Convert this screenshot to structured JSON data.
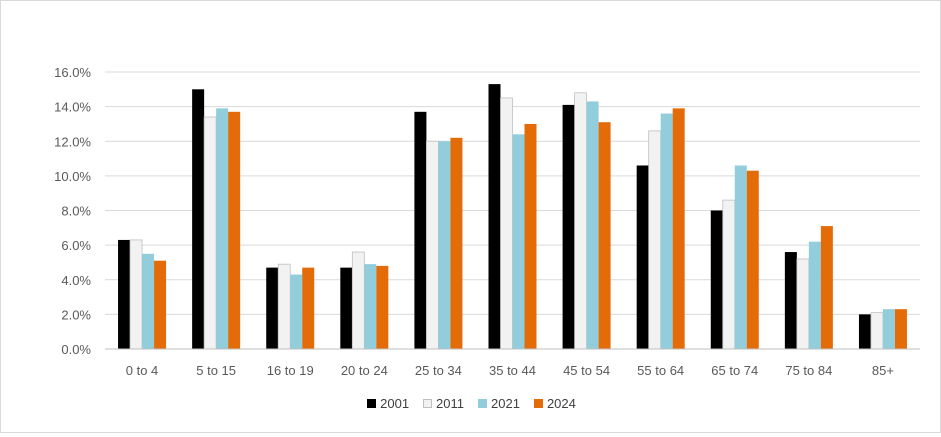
{
  "chart_data": {
    "type": "bar",
    "categories": [
      "0 to 4",
      "5 to 15",
      "16 to 19",
      "20 to 24",
      "25 to 34",
      "35 to 44",
      "45 to 54",
      "55 to 64",
      "65 to 74",
      "75 to 84",
      "85+"
    ],
    "series": [
      {
        "name": "2001",
        "color": "#000000",
        "values": [
          6.3,
          15.0,
          4.7,
          4.7,
          13.7,
          15.3,
          14.1,
          10.6,
          8.0,
          5.6,
          2.0
        ]
      },
      {
        "name": "2011",
        "color": "#f2f2f2",
        "values": [
          6.3,
          13.4,
          4.9,
          5.6,
          12.0,
          14.5,
          14.8,
          12.6,
          8.6,
          5.2,
          2.1
        ]
      },
      {
        "name": "2021",
        "color": "#92cddc",
        "values": [
          5.5,
          13.9,
          4.3,
          4.9,
          12.0,
          12.4,
          14.3,
          13.6,
          10.6,
          6.2,
          2.3
        ]
      },
      {
        "name": "2024",
        "color": "#e36c09",
        "values": [
          5.1,
          13.7,
          4.7,
          4.8,
          12.2,
          13.0,
          13.1,
          13.9,
          10.3,
          7.1,
          2.3
        ]
      }
    ],
    "y_ticks": [
      "0.0%",
      "2.0%",
      "4.0%",
      "6.0%",
      "8.0%",
      "10.0%",
      "12.0%",
      "14.0%",
      "16.0%"
    ],
    "ylim": [
      0,
      16
    ],
    "grid": true,
    "legend_position": "bottom"
  }
}
